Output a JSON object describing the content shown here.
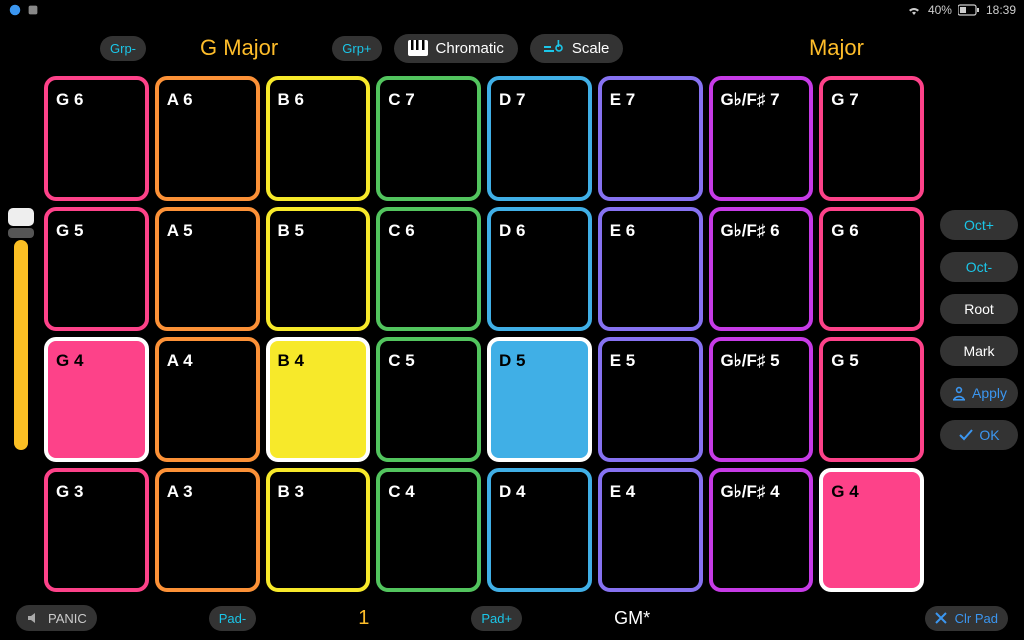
{
  "status": {
    "battery_text": "40%",
    "clock": "18:39"
  },
  "top": {
    "grp_minus": "Grp-",
    "grp_plus": "Grp+",
    "scale_left": "G Major",
    "chromatic": "Chromatic",
    "scale_btn": "Scale",
    "scale_right": "Major"
  },
  "colors": {
    "accent_yellow": "#febd2a",
    "accent_cyan": "#1bc6e8",
    "accent_blue": "#3b96f0",
    "pill_bg": "#333333",
    "col": [
      "#fd4289",
      "#fc9137",
      "#f7e92a",
      "#52c45e",
      "#40afe6",
      "#8672f1",
      "#c63be6",
      "#fd4289"
    ],
    "white": "#ffffff",
    "pad_bg": "#000000"
  },
  "pads": {
    "cols": 8,
    "rows": 4,
    "labels": [
      [
        "G 6",
        "A 6",
        "B 6",
        "C 7",
        "D 7",
        "E 7",
        "G♭/F♯ 7",
        "G 7"
      ],
      [
        "G 5",
        "A 5",
        "B 5",
        "C 6",
        "D 6",
        "E 6",
        "G♭/F♯ 6",
        "G 6"
      ],
      [
        "G 4",
        "A 4",
        "B 4",
        "C 5",
        "D 5",
        "E 5",
        "G♭/F♯ 5",
        "G 5"
      ],
      [
        "G 3",
        "A 3",
        "B 3",
        "C 4",
        "D 4",
        "E 4",
        "G♭/F♯ 4",
        "G 4"
      ]
    ],
    "highlights": [
      {
        "row": 2,
        "col": 0,
        "fill": "#fd4289",
        "border": "#ffffff"
      },
      {
        "row": 2,
        "col": 2,
        "fill": "#f7e92a",
        "border": "#ffffff"
      },
      {
        "row": 2,
        "col": 4,
        "fill": "#40afe6",
        "border": "#ffffff"
      },
      {
        "row": 3,
        "col": 7,
        "fill": "#fd4289",
        "border": "#ffffff"
      }
    ]
  },
  "side": {
    "oct_plus": "Oct+",
    "oct_minus": "Oct-",
    "root": "Root",
    "mark": "Mark",
    "apply": "Apply",
    "ok": "OK"
  },
  "bottom": {
    "panic": "PANIC",
    "pad_minus": "Pad-",
    "page_num": "1",
    "pad_plus": "Pad+",
    "preset": "GM*",
    "clr_pad": "Clr Pad"
  }
}
